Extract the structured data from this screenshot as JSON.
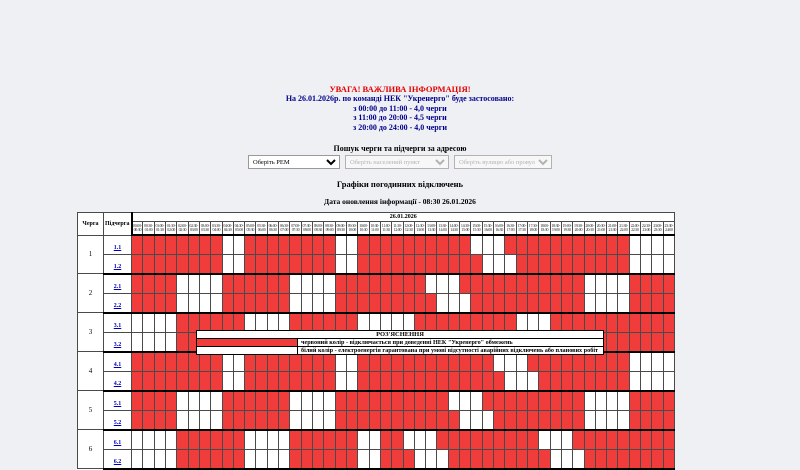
{
  "colors": {
    "red": "#f13c3c",
    "white": "#ffffff",
    "warning_title": "#e60000",
    "warning_text": "#00008b",
    "link": "#0000bb",
    "background": "#eef0f3"
  },
  "warning": {
    "title": "УВАГА! ВАЖЛИВА ІНФОРМАЦІЯ!",
    "intro": "На 26.01.2026р. по команді НЕК \"Укренерго\" буде застосовано:",
    "lines": [
      "з 00:00 до 11:00 - 4,0 черги",
      "з 11:00 до 20:00 - 4,5 черги",
      "з 20:00 до 24:00 - 4,0 черги"
    ]
  },
  "search": {
    "title": "Пошук черги та підчерги за адресою",
    "rem_select": "Оберіть РЕМ",
    "town_select": "Оберіть населений пункт",
    "street_select": "Оберіть вулицю або провулок"
  },
  "schedule": {
    "title": "Графіки погодинних відключень",
    "updated": "Дата оновлення інформації - 08:30 26.01.2026",
    "date": "26.01.2026",
    "queue_header": "Черга",
    "subqueue_header": "Підчерга",
    "time_slots": [
      "00:00-00:30",
      "00:30-01:00",
      "01:00-01:30",
      "01:30-02:00",
      "02:00-02:30",
      "02:30-03:00",
      "03:00-03:30",
      "03:30-04:00",
      "04:00-04:30",
      "04:30-05:00",
      "05:00-05:30",
      "05:30-06:00",
      "06:00-06:30",
      "06:30-07:00",
      "07:00-07:30",
      "07:30-08:00",
      "08:00-08:30",
      "08:30-09:00",
      "09:00-09:30",
      "09:30-10:00",
      "10:00-10:30",
      "10:30-11:00",
      "11:00-11:30",
      "11:30-12:00",
      "12:00-12:30",
      "12:30-13:00",
      "13:00-13:30",
      "13:30-14:00",
      "14:00-14:30",
      "14:30-15:00",
      "15:00-15:30",
      "15:30-16:00",
      "16:00-16:30",
      "16:30-17:00",
      "17:00-17:30",
      "17:30-18:00",
      "18:00-18:30",
      "18:30-19:00",
      "19:00-19:30",
      "19:30-20:00",
      "20:00-20:30",
      "20:30-21:00",
      "21:00-21:30",
      "21:30-22:00",
      "22:00-22:30",
      "22:30-23:00",
      "23:00-23:30",
      "23:30-24:00"
    ],
    "rows": [
      {
        "queue": "1",
        "sub": "1.1",
        "cells": "111111110011111111001111111111000111111111110000"
      },
      {
        "queue": "1",
        "sub": "1.2",
        "cells": "111111110011111111001111111111100011111111110000"
      },
      {
        "queue": "2",
        "sub": "2.1",
        "cells": "111100001111110000111111110001111111111100001111"
      },
      {
        "queue": "2",
        "sub": "2.2",
        "cells": "111100001111110000111111111000111111111100001111"
      },
      {
        "queue": "3",
        "sub": "3.1",
        "cells": "000011111100001111110000011111111100011111111111"
      },
      {
        "queue": "3",
        "sub": "3.2",
        "cells": "000011111100001111110010001111111110001111111111"
      },
      {
        "queue": "4",
        "sub": "4.1",
        "cells": "111111110011111111001111111111110001111111110000"
      },
      {
        "queue": "4",
        "sub": "4.2",
        "cells": "111111110011111111001111111111111000111111110000"
      },
      {
        "queue": "5",
        "sub": "5.1",
        "cells": "111100001111110000111111111100011111111100001111"
      },
      {
        "queue": "5",
        "sub": "5.2",
        "cells": "111100001111110000111111111110001111111100001111"
      },
      {
        "queue": "6",
        "sub": "6.1",
        "cells": "000011111100001111110011000111111111000111111111"
      },
      {
        "queue": "6",
        "sub": "6.2",
        "cells": "000011111100001111110011100011111111100011111111"
      }
    ],
    "cell_legend": {
      "1": "red-off",
      "0": "white-on"
    }
  },
  "legend": {
    "title": "РОЗ'ЯСНЕННЯ",
    "items": [
      {
        "color": "#f13c3c",
        "text": "червоний колір - відключається при доведенні НЕК \"Укренерго\" обмежень"
      },
      {
        "color": "#ffffff",
        "text": "білий колір - електроенергія гарантована при умові відсутності аварійних відключень або планових робіт"
      }
    ]
  }
}
